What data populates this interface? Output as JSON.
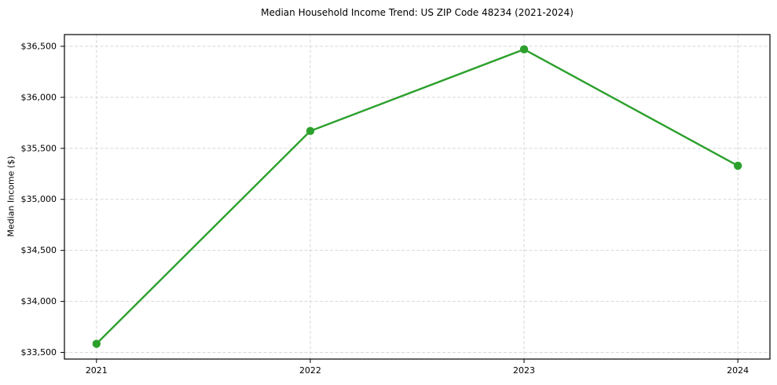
{
  "chart_data": {
    "type": "line",
    "title": "Median Household Income Trend: US ZIP Code 48234 (2021-2024)",
    "ylabel": "Median Income ($)",
    "categories": [
      "2021",
      "2022",
      "2023",
      "2024"
    ],
    "x": [
      2021,
      2022,
      2023,
      2024
    ],
    "series": [
      {
        "values": [
          33585,
          35670,
          36470,
          35330
        ],
        "color": "#2ca02c",
        "marker": "circle"
      }
    ],
    "yticks": [
      33500,
      34000,
      34500,
      35000,
      35500,
      36000,
      36500
    ],
    "ytick_labels": [
      "$33,500",
      "$34,000",
      "$34,500",
      "$35,000",
      "$35,500",
      "$36,000",
      "$36,500"
    ],
    "xlim": [
      2020.85,
      2024.15
    ],
    "ylim": [
      33435,
      36615
    ],
    "grid": true,
    "grid_style": "dashed",
    "grid_color": "#d7d7d7",
    "spine_color": "#000000",
    "legend_position": "none",
    "background": "#ffffff"
  }
}
